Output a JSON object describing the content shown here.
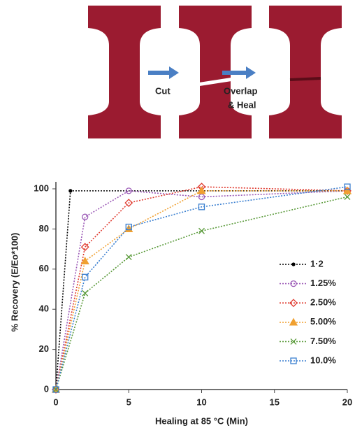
{
  "diagram": {
    "labels": [
      "Cut",
      "Overlap",
      "& Heal"
    ]
  },
  "chart_data": {
    "type": "line",
    "x_label": "Healing at 85 °C (Min)",
    "y_label": "% Recovery (E/Eo*100)",
    "xlim": [
      0,
      20
    ],
    "xticks": [
      0,
      5,
      10,
      15,
      20
    ],
    "ylim": [
      0,
      100
    ],
    "yticks": [
      0,
      20,
      40,
      60,
      80,
      100
    ],
    "legend": "right",
    "series": [
      {
        "name": "1·2",
        "color": "#000000",
        "marker": "dot",
        "x": [
          0,
          1,
          20
        ],
        "values": [
          0,
          99,
          99
        ]
      },
      {
        "name": "1.25%",
        "color": "#9b59b6",
        "marker": "circle",
        "x": [
          0,
          2,
          5,
          10,
          20
        ],
        "values": [
          0,
          86,
          99,
          96,
          99
        ]
      },
      {
        "name": "2.50%",
        "color": "#e03c31",
        "marker": "diamond",
        "x": [
          0,
          2,
          5,
          10,
          20
        ],
        "values": [
          0,
          71,
          93,
          101,
          99
        ]
      },
      {
        "name": "5.00%",
        "color": "#f0a030",
        "marker": "triangle",
        "x": [
          0,
          2,
          5,
          10,
          20
        ],
        "values": [
          0,
          64,
          80,
          99,
          99
        ]
      },
      {
        "name": "7.50%",
        "color": "#5a9a3a",
        "marker": "x",
        "x": [
          0,
          2,
          5,
          10,
          20
        ],
        "values": [
          0,
          48,
          66,
          79,
          96
        ]
      },
      {
        "name": "10.0%",
        "color": "#3a7fd0",
        "marker": "square",
        "x": [
          0,
          2,
          5,
          10,
          20
        ],
        "values": [
          0,
          56,
          81,
          91,
          101
        ]
      }
    ]
  }
}
